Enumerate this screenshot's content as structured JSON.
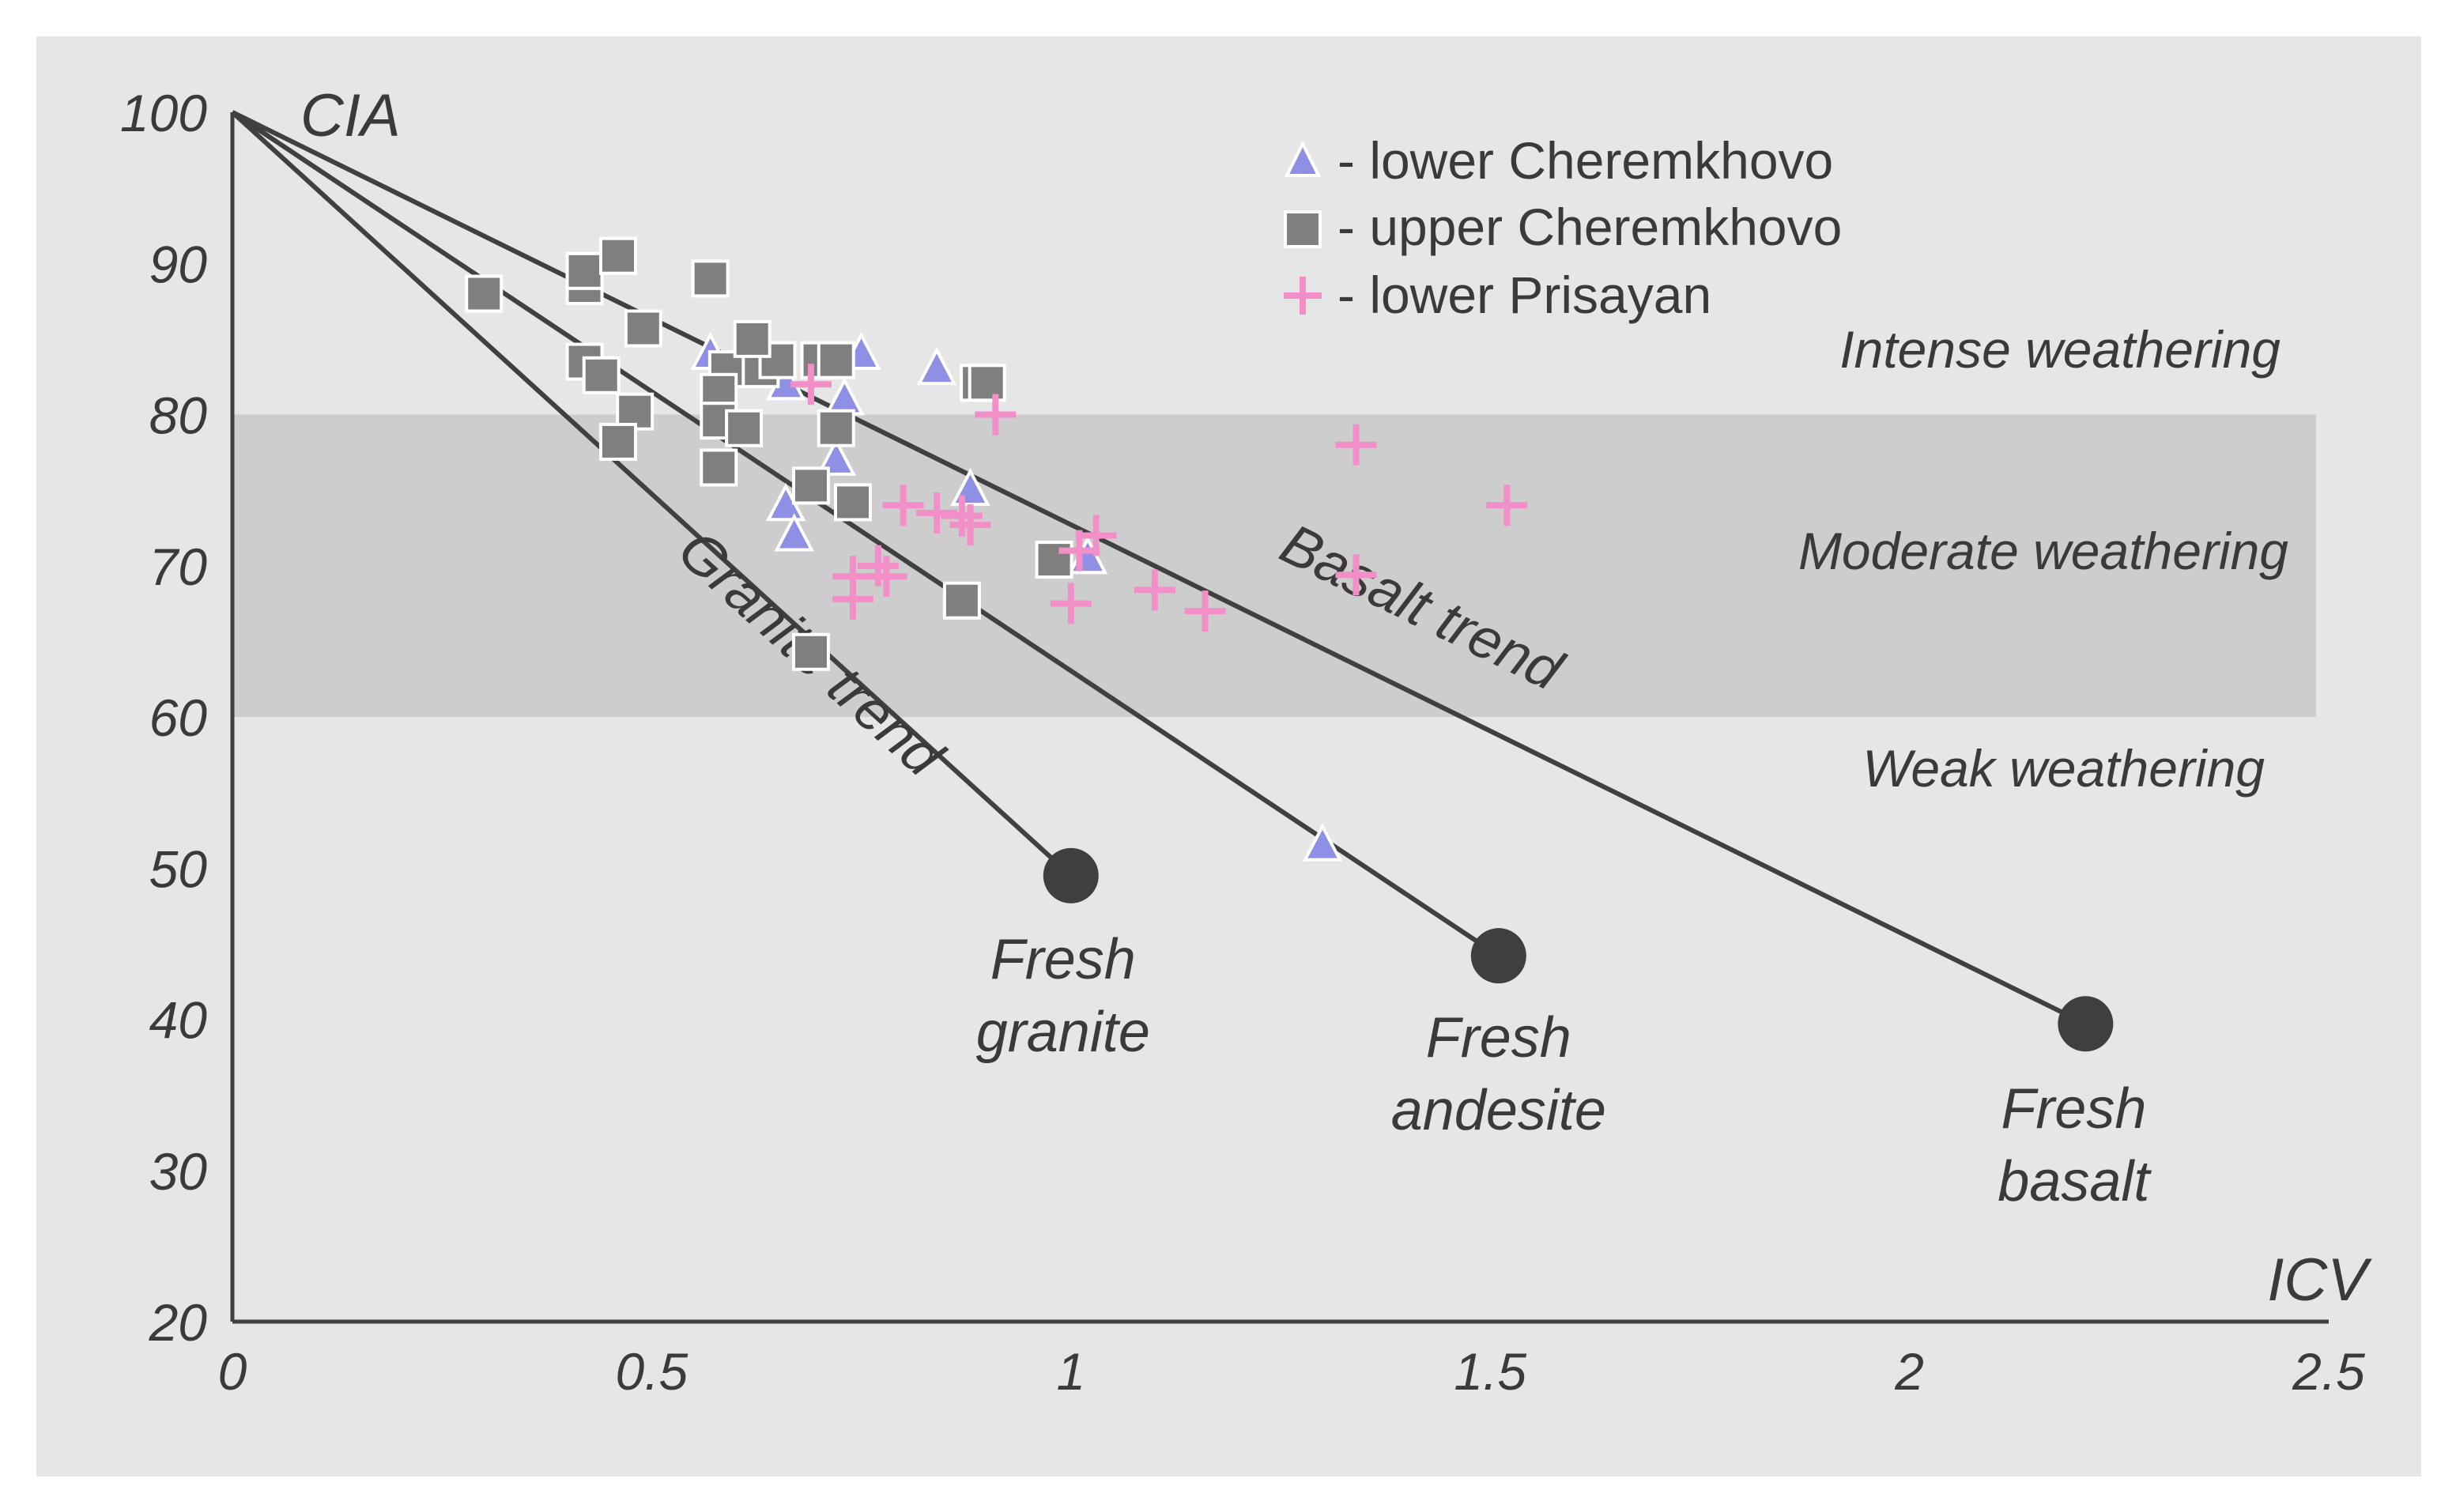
{
  "chart_data": {
    "type": "scatter",
    "title": "",
    "xlabel": "ICV",
    "ylabel": "CIA",
    "xlim": [
      0,
      2.5
    ],
    "ylim": [
      20,
      100
    ],
    "x_ticks": [
      "0",
      "0.5",
      "1",
      "1.5",
      "2",
      "2.5"
    ],
    "y_ticks": [
      "100",
      "90",
      "80",
      "70",
      "60",
      "50",
      "40",
      "30",
      "20"
    ],
    "legend": {
      "position": "top-center",
      "entries": [
        {
          "label": "- lower Cheremkhovo",
          "marker": "triangle",
          "color": "#8f8fe6"
        },
        {
          "label": "- upper Cheremkhovo",
          "marker": "square",
          "color": "#7f7f7f"
        },
        {
          "label": "- lower Prisayan",
          "marker": "plus",
          "color": "#f28fc9"
        }
      ]
    },
    "zones": [
      {
        "label": "Intense weathering",
        "y_range": [
          80,
          100
        ]
      },
      {
        "label": "Moderate weathering",
        "y_range": [
          60,
          80
        ],
        "shaded": true
      },
      {
        "label": "Weak weathering",
        "y_range": [
          20,
          60
        ]
      }
    ],
    "trends": [
      {
        "label": "Granite trend",
        "from": [
          0,
          100
        ],
        "to": [
          1.0,
          49.5
        ],
        "end_label": [
          "Fresh",
          "granite"
        ]
      },
      {
        "label": "",
        "from": [
          0,
          100
        ],
        "to": [
          1.51,
          44.2
        ],
        "end_label": [
          "Fresh",
          "andesite"
        ]
      },
      {
        "label": "Basalt trend",
        "from": [
          0,
          100
        ],
        "to": [
          2.21,
          39.7
        ],
        "end_label": [
          "Fresh",
          "basalt"
        ]
      }
    ],
    "series": [
      {
        "name": "lower Cheremkhovo",
        "marker": "triangle",
        "points": [
          [
            0.57,
            84
          ],
          [
            0.66,
            82
          ],
          [
            0.75,
            84
          ],
          [
            0.84,
            83
          ],
          [
            0.73,
            81
          ],
          [
            0.72,
            77
          ],
          [
            0.66,
            74
          ],
          [
            0.67,
            72
          ],
          [
            0.88,
            75
          ],
          [
            1.02,
            70.5
          ],
          [
            1.3,
            51.5
          ]
        ]
      },
      {
        "name": "upper Cheremkhovo",
        "marker": "square",
        "points": [
          [
            0.3,
            88
          ],
          [
            0.42,
            88.5
          ],
          [
            0.42,
            89.5
          ],
          [
            0.46,
            90.5
          ],
          [
            0.57,
            89
          ],
          [
            0.49,
            85.7
          ],
          [
            0.42,
            83.5
          ],
          [
            0.44,
            82.6
          ],
          [
            0.59,
            83
          ],
          [
            0.63,
            83
          ],
          [
            0.65,
            83.6
          ],
          [
            0.7,
            83.6
          ],
          [
            0.72,
            83.6
          ],
          [
            0.62,
            85
          ],
          [
            0.58,
            81.5
          ],
          [
            0.58,
            79.6
          ],
          [
            0.48,
            80.2
          ],
          [
            0.61,
            79.1
          ],
          [
            0.72,
            79.1
          ],
          [
            0.46,
            78.2
          ],
          [
            0.58,
            76.5
          ],
          [
            0.69,
            75.3
          ],
          [
            0.74,
            74.2
          ],
          [
            0.89,
            82.1
          ],
          [
            0.9,
            82.1
          ],
          [
            0.98,
            70.4
          ],
          [
            0.87,
            67.7
          ],
          [
            0.69,
            64.3
          ]
        ]
      },
      {
        "name": "lower Prisayan",
        "marker": "plus",
        "points": [
          [
            0.69,
            82
          ],
          [
            0.91,
            80
          ],
          [
            1.34,
            78
          ],
          [
            1.52,
            74
          ],
          [
            0.8,
            74
          ],
          [
            0.84,
            73.5
          ],
          [
            0.87,
            73.3
          ],
          [
            0.88,
            72.7
          ],
          [
            1.03,
            72
          ],
          [
            1.01,
            71
          ],
          [
            0.74,
            69.3
          ],
          [
            0.77,
            70
          ],
          [
            0.78,
            69.3
          ],
          [
            1.34,
            69.4
          ],
          [
            0.74,
            67.8
          ],
          [
            1.1,
            68.4
          ],
          [
            1.16,
            67
          ],
          [
            1.0,
            67.5
          ]
        ]
      }
    ]
  }
}
